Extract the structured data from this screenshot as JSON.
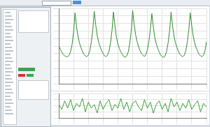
{
  "chart_data": [
    {
      "type": "line",
      "grid": true,
      "tick_labels": false,
      "color": "#2e8b2e",
      "xlim": [
        0,
        100
      ],
      "xticks": [
        0,
        10,
        20,
        30,
        40,
        50,
        60,
        70,
        80,
        90,
        100
      ],
      "ylim": [
        0,
        10
      ],
      "yticks": [
        0,
        1,
        2,
        3,
        4,
        5,
        6,
        7,
        8,
        9,
        10
      ],
      "x": [
        0,
        1,
        2,
        3,
        4,
        5,
        6,
        7,
        8,
        9,
        10,
        11,
        12,
        13,
        14,
        15,
        16,
        17,
        18,
        19,
        20,
        21,
        22,
        23,
        24,
        25,
        26,
        27,
        28,
        29,
        30,
        31,
        32,
        33,
        34,
        35,
        36,
        37,
        38,
        39,
        40,
        41,
        42,
        43,
        44,
        45,
        46,
        47,
        48,
        49,
        50,
        51,
        52,
        53,
        54,
        55,
        56,
        57,
        58,
        59,
        60,
        61,
        62,
        63,
        64,
        65,
        66,
        67,
        68,
        69,
        70,
        71,
        72,
        73,
        74,
        75,
        76,
        77,
        78,
        79,
        80,
        81,
        82,
        83,
        84,
        85,
        86,
        87,
        88,
        89,
        90,
        91,
        92,
        93,
        94,
        95,
        96,
        97,
        98,
        99,
        100
      ],
      "values": [
        5.0,
        4.6,
        4.2,
        3.9,
        3.7,
        3.6,
        3.6,
        3.8,
        4.3,
        5.2,
        6.8,
        9.4,
        7.6,
        6.3,
        5.4,
        4.8,
        4.3,
        3.9,
        3.7,
        3.6,
        3.8,
        4.4,
        5.5,
        7.1,
        9.6,
        7.8,
        6.4,
        5.5,
        4.9,
        4.4,
        4.0,
        3.7,
        3.6,
        3.8,
        4.3,
        5.4,
        7.0,
        9.5,
        7.7,
        6.2,
        5.3,
        4.7,
        4.2,
        3.9,
        3.6,
        3.5,
        3.7,
        4.2,
        5.3,
        6.9,
        9.7,
        7.9,
        6.5,
        5.6,
        4.9,
        4.4,
        4.0,
        3.8,
        3.6,
        3.9,
        4.5,
        5.6,
        7.2,
        9.3,
        7.5,
        6.1,
        5.3,
        4.7,
        4.2,
        3.8,
        3.6,
        3.5,
        3.7,
        4.3,
        5.4,
        7.0,
        9.5,
        7.7,
        6.3,
        5.4,
        4.8,
        4.3,
        3.9,
        3.7,
        3.6,
        3.8,
        4.4,
        5.5,
        7.1,
        9.4,
        7.7,
        6.3,
        5.4,
        4.8,
        4.3,
        3.9,
        3.7,
        3.6,
        3.8,
        4.4,
        5.6
      ]
    },
    {
      "type": "line",
      "grid": true,
      "tick_labels": false,
      "color": "#3aa03a",
      "xlim": [
        0,
        100
      ],
      "xticks": [
        0,
        10,
        20,
        30,
        40,
        50,
        60,
        70,
        80,
        90,
        100
      ],
      "ylim": [
        -1,
        1
      ],
      "yticks": [
        -1,
        -0.5,
        0,
        0.5,
        1
      ],
      "x": [
        0,
        2,
        4,
        6,
        8,
        10,
        12,
        14,
        16,
        18,
        20,
        22,
        24,
        26,
        28,
        30,
        32,
        34,
        36,
        38,
        40,
        42,
        44,
        46,
        48,
        50,
        52,
        54,
        56,
        58,
        60,
        62,
        64,
        66,
        68,
        70,
        72,
        74,
        76,
        78,
        80,
        82,
        84,
        86,
        88,
        90,
        92,
        94,
        96,
        98,
        100
      ],
      "values": [
        0.1,
        -0.3,
        0.4,
        -0.2,
        0.5,
        -0.4,
        0.2,
        -0.1,
        0.6,
        -0.5,
        0.3,
        -0.2,
        0.1,
        -0.6,
        0.4,
        -0.3,
        0.2,
        0.5,
        -0.4,
        0.1,
        -0.2,
        0.6,
        -0.3,
        0.3,
        -0.5,
        0.2,
        0.4,
        -0.1,
        -0.4,
        0.5,
        -0.2,
        0.3,
        -0.6,
        0.1,
        0.4,
        -0.3,
        0.2,
        -0.5,
        0.6,
        -0.1,
        0.3,
        -0.4,
        0.2,
        -0.2,
        0.5,
        -0.3,
        0.1,
        0.4,
        -0.5,
        0.2,
        -0.1
      ]
    }
  ]
}
